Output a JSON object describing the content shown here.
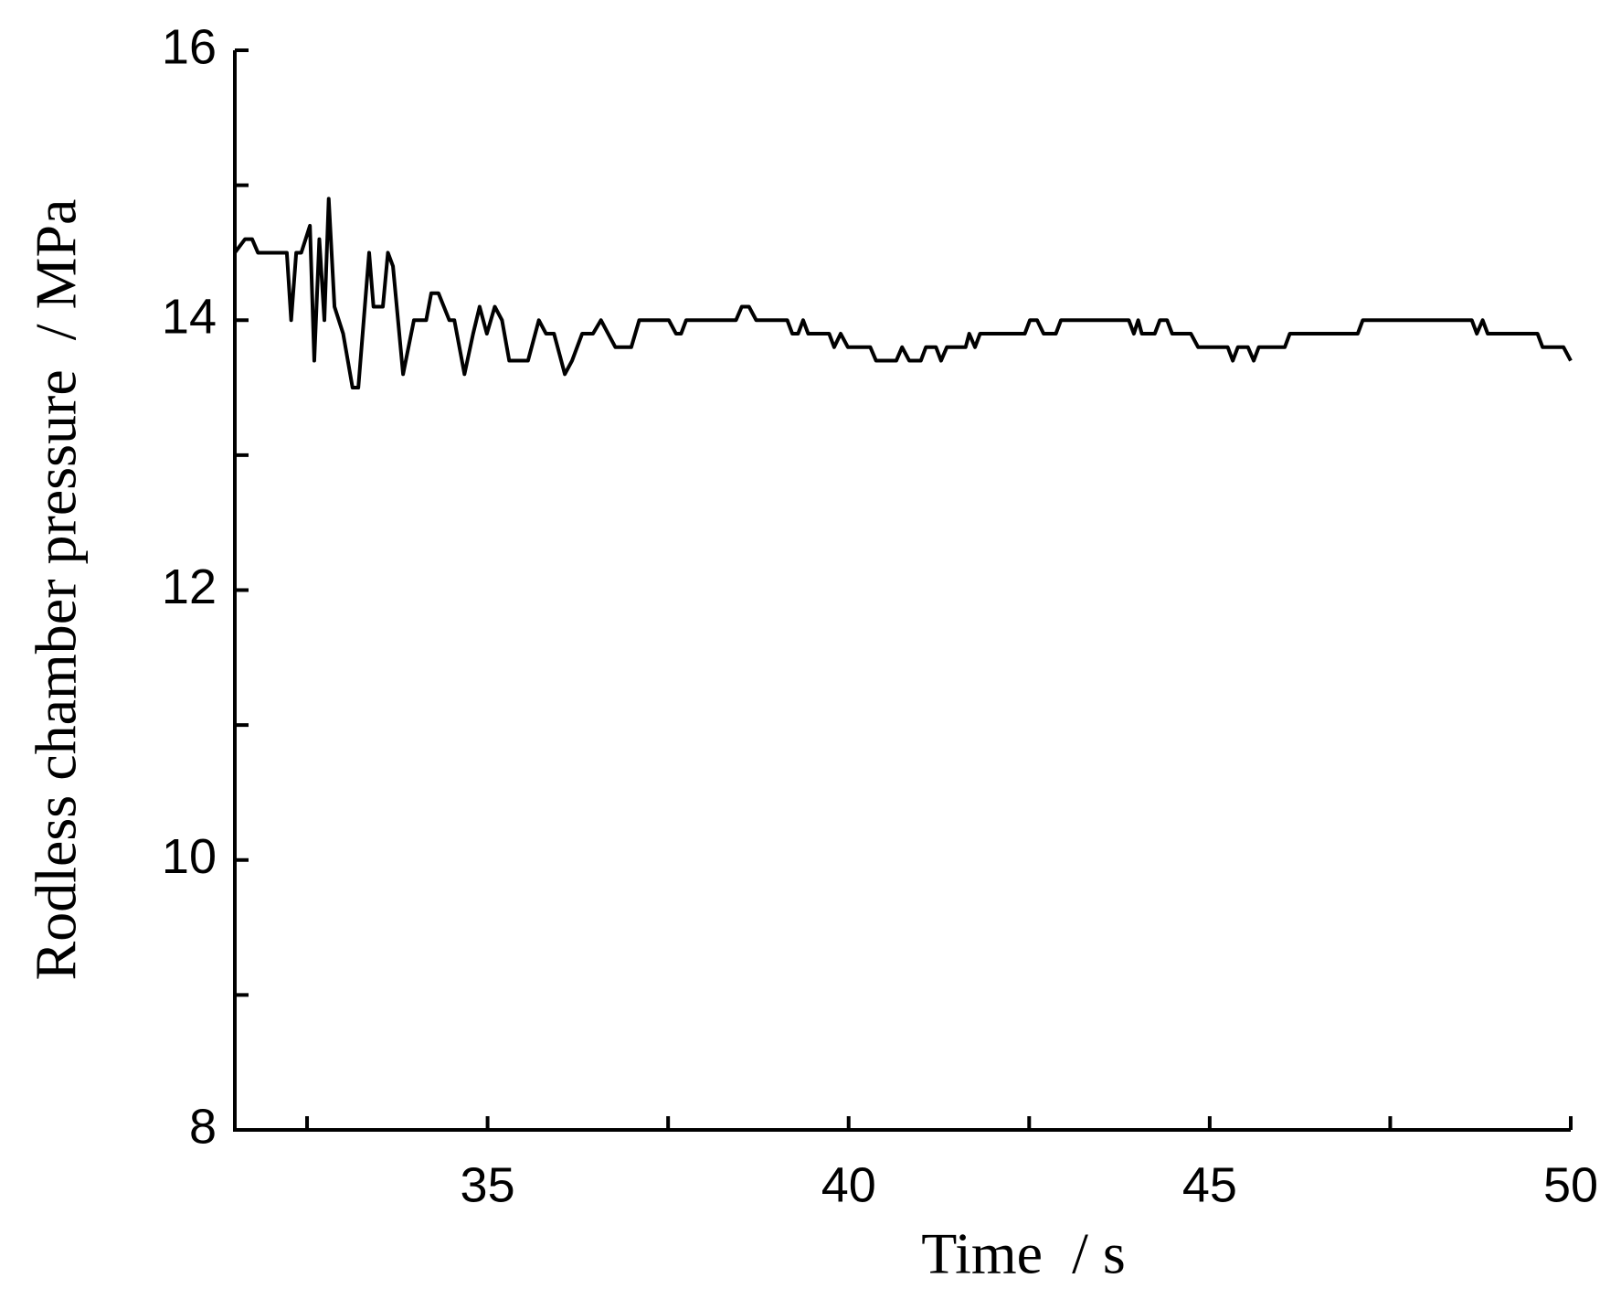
{
  "chart_data": {
    "type": "line",
    "x_label": "Time  / s",
    "y_label": "Rodless chamber pressure  / MPa",
    "color": "#000000",
    "xlim": [
      31.5,
      50
    ],
    "xticks": [
      35,
      40,
      45,
      50
    ],
    "xminorticks": [
      32.5,
      37.5,
      42.5,
      47.5
    ],
    "ylim": [
      8,
      16
    ],
    "yticks": [
      8,
      10,
      12,
      14,
      16
    ],
    "yminorticks": [
      9,
      11,
      13,
      15
    ],
    "x": [
      31.5,
      31.64,
      31.74,
      31.82,
      32.22,
      32.28,
      32.35,
      32.42,
      32.54,
      32.6,
      32.67,
      32.74,
      32.8,
      32.88,
      33.0,
      33.13,
      33.21,
      33.36,
      33.42,
      33.55,
      33.62,
      33.69,
      33.83,
      33.98,
      34.15,
      34.22,
      34.32,
      34.47,
      34.54,
      34.68,
      34.8,
      34.89,
      34.99,
      35.1,
      35.2,
      35.3,
      35.56,
      35.71,
      35.81,
      35.92,
      36.07,
      36.17,
      36.31,
      36.46,
      36.57,
      36.67,
      36.77,
      36.99,
      37.1,
      37.51,
      37.61,
      37.68,
      37.75,
      38.44,
      38.52,
      38.62,
      38.72,
      39.15,
      39.22,
      39.3,
      39.37,
      39.44,
      39.73,
      39.8,
      39.89,
      39.99,
      40.3,
      40.38,
      40.66,
      40.74,
      40.84,
      41.0,
      41.07,
      41.21,
      41.28,
      41.36,
      41.62,
      41.67,
      41.75,
      41.82,
      42.44,
      42.51,
      42.61,
      42.7,
      42.87,
      42.94,
      43.88,
      43.95,
      44.01,
      44.06,
      44.24,
      44.31,
      44.41,
      44.48,
      44.74,
      44.84,
      45.25,
      45.32,
      45.39,
      45.53,
      45.61,
      45.68,
      46.04,
      46.11,
      47.05,
      47.12,
      48.63,
      48.7,
      48.78,
      48.85,
      49.54,
      49.61,
      49.9,
      50.0
    ],
    "values": [
      14.5,
      14.6,
      14.6,
      14.5,
      14.5,
      14.0,
      14.5,
      14.5,
      14.7,
      13.7,
      14.6,
      14.0,
      14.9,
      14.1,
      13.9,
      13.5,
      13.5,
      14.5,
      14.1,
      14.1,
      14.5,
      14.4,
      13.6,
      14.0,
      14.0,
      14.2,
      14.2,
      14.0,
      14.0,
      13.6,
      13.9,
      14.1,
      13.9,
      14.1,
      14.0,
      13.7,
      13.7,
      14.0,
      13.9,
      13.9,
      13.6,
      13.7,
      13.9,
      13.9,
      14.0,
      13.9,
      13.8,
      13.8,
      14.0,
      14.0,
      13.9,
      13.9,
      14.0,
      14.0,
      14.1,
      14.1,
      14.0,
      14.0,
      13.9,
      13.9,
      14.0,
      13.9,
      13.9,
      13.8,
      13.9,
      13.8,
      13.8,
      13.7,
      13.7,
      13.8,
      13.7,
      13.7,
      13.8,
      13.8,
      13.7,
      13.8,
      13.8,
      13.9,
      13.8,
      13.9,
      13.9,
      14.0,
      14.0,
      13.9,
      13.9,
      14.0,
      14.0,
      13.9,
      14.0,
      13.9,
      13.9,
      14.0,
      14.0,
      13.9,
      13.9,
      13.8,
      13.8,
      13.7,
      13.8,
      13.8,
      13.7,
      13.8,
      13.8,
      13.9,
      13.9,
      14.0,
      14.0,
      13.9,
      14.0,
      13.9,
      13.9,
      13.8,
      13.8,
      13.7
    ]
  }
}
